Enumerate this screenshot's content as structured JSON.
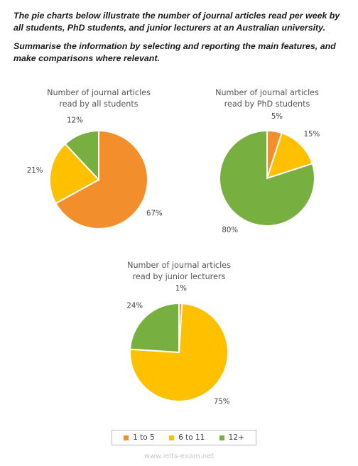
{
  "prompt": {
    "line1": "The pie charts below illustrate the number of journal articles read per week by all students, PhD students, and junior lecturers at an Australian university.",
    "line2": "Summarise the information by selecting and reporting the main features, and make comparisons where relevant."
  },
  "colors": {
    "orange": "#f28e2b",
    "yellow": "#ffc000",
    "green": "#77b041"
  },
  "legend": [
    {
      "label": "1 to 5",
      "color": "#f28e2b"
    },
    {
      "label": "6 to 11",
      "color": "#ffc000"
    },
    {
      "label": "12+",
      "color": "#77b041"
    }
  ],
  "footer": "www.ielts-exam.net",
  "chart_data": [
    {
      "type": "pie",
      "title_lines": [
        "Number of journal articles",
        "read by all students"
      ],
      "categories": [
        "1 to 5",
        "6 to 11",
        "12+"
      ],
      "values": [
        67,
        21,
        12
      ],
      "labels": [
        "67%",
        "21%",
        "12%"
      ]
    },
    {
      "type": "pie",
      "title_lines": [
        "Number of journal articles",
        "read by PhD students"
      ],
      "categories": [
        "1 to 5",
        "6 to 11",
        "12+"
      ],
      "values": [
        5,
        15,
        80
      ],
      "labels": [
        "5%",
        "15%",
        "80%"
      ]
    },
    {
      "type": "pie",
      "title_lines": [
        "Number of journal articles",
        "read by junior lecturers"
      ],
      "categories": [
        "1 to 5",
        "6 to 11",
        "12+"
      ],
      "values": [
        1,
        75,
        24
      ],
      "labels": [
        "1%",
        "75%",
        "24%"
      ]
    }
  ]
}
